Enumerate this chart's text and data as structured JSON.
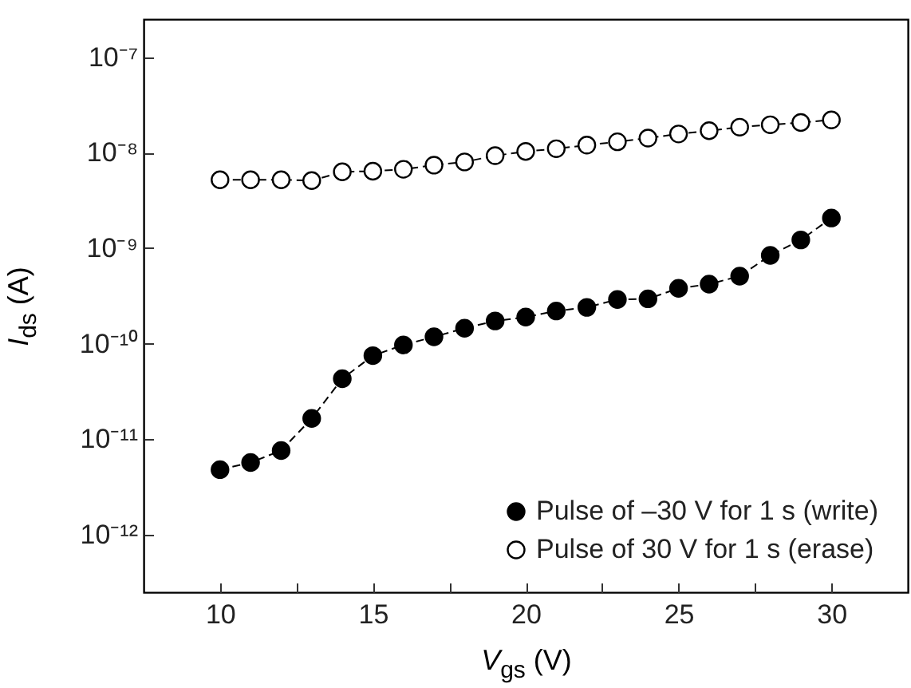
{
  "chart_data": {
    "type": "line",
    "xlabel": "V$_{gs}$ (V)",
    "ylabel": "I$_{ds}$ (A)",
    "x": [
      10,
      11,
      12,
      13,
      14,
      15,
      16,
      17,
      18,
      19,
      20,
      21,
      22,
      23,
      24,
      25,
      26,
      27,
      28,
      29,
      30
    ],
    "series": [
      {
        "name": "Pulse of –30 V for 1 s (write)",
        "color": "#000000",
        "values": [
          4.8e-12,
          5.7e-12,
          7.6e-12,
          1.65e-11,
          4.3e-11,
          7.5e-11,
          9.7e-11,
          1.18e-10,
          1.45e-10,
          1.73e-10,
          1.9e-10,
          2.2e-10,
          2.4e-10,
          2.9e-10,
          2.95e-10,
          3.8e-10,
          4.2e-10,
          5.1e-10,
          8.4e-10,
          1.22e-09,
          2.07e-09
        ]
      },
      {
        "name": "Pulse of 30 V for 1 s (erase)",
        "color": "#ffffff",
        "values": [
          5.2e-09,
          5.2e-09,
          5.2e-09,
          5.1e-09,
          6.3e-09,
          6.4e-09,
          6.7e-09,
          7.4e-09,
          8e-09,
          9.3e-09,
          1.03e-08,
          1.1e-08,
          1.2e-08,
          1.3e-08,
          1.42e-08,
          1.57e-08,
          1.7e-08,
          1.85e-08,
          1.96e-08,
          2.07e-08,
          2.2e-08
        ]
      }
    ],
    "log": true,
    "ylim": [
      2.5e-13,
      2.5e-07
    ],
    "yticks": [
      {
        "value": 1e-12,
        "label": "10⁻¹²"
      },
      {
        "value": 1e-11,
        "label": "10⁻¹¹"
      },
      {
        "value": 1e-10,
        "label": "10⁻¹⁰"
      },
      {
        "value": 1e-09,
        "label": "10⁻⁹"
      },
      {
        "value": 1e-08,
        "label": "10⁻⁸"
      },
      {
        "value": 1e-07,
        "label": "10⁻⁷"
      }
    ],
    "xlim": [
      7.5,
      32.5
    ],
    "xticks": [
      10,
      {
        "value": 12.5,
        "label": null
      },
      15,
      {
        "value": 17.5,
        "label": null
      },
      20,
      {
        "value": 22.5,
        "label": null
      },
      25,
      {
        "value": 27.5,
        "label": null
      },
      30
    ],
    "marker": "circle",
    "line_style": "dashed",
    "grid": false,
    "legend": "bottom right"
  }
}
